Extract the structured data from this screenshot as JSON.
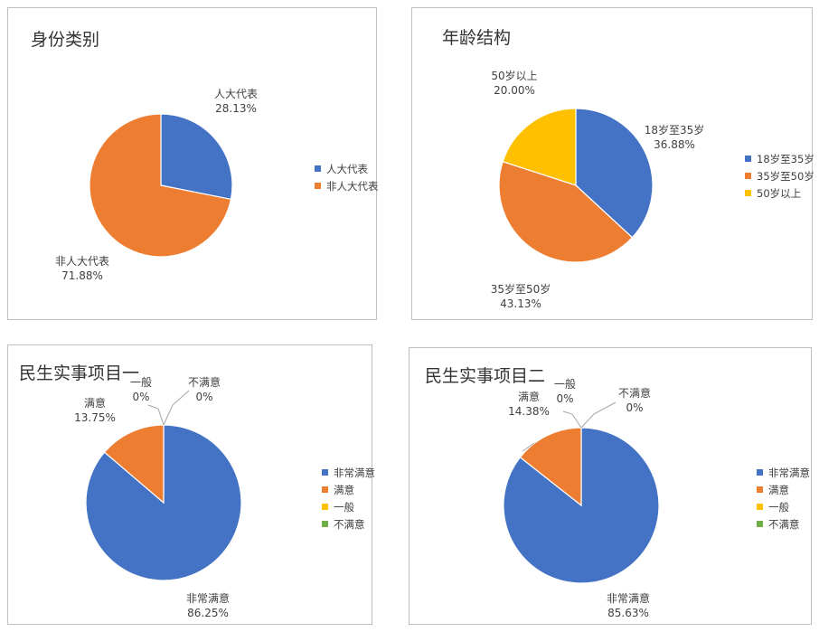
{
  "chart_data": [
    {
      "type": "pie",
      "title": "身份类别",
      "categories": [
        "人大代表",
        "非人大代表"
      ],
      "values": [
        28.13,
        71.88
      ],
      "value_labels": [
        "28.13%",
        "71.88%"
      ],
      "colors": [
        "#4472C4",
        "#ED7D31"
      ],
      "legend": "right"
    },
    {
      "type": "pie",
      "title": "年龄结构",
      "categories": [
        "18岁至35岁",
        "35岁至50岁",
        "50岁以上"
      ],
      "values": [
        36.88,
        43.13,
        20.0
      ],
      "value_labels": [
        "36.88%",
        "43.13%",
        "20.00%"
      ],
      "colors": [
        "#4472C4",
        "#ED7D31",
        "#FFC000"
      ],
      "legend": "right"
    },
    {
      "type": "pie",
      "title": "民生实事项目一",
      "categories": [
        "非常满意",
        "满意",
        "一般",
        "不满意"
      ],
      "values": [
        86.25,
        13.75,
        0,
        0
      ],
      "value_labels": [
        "86.25%",
        "13.75%",
        "0%",
        "0%"
      ],
      "colors": [
        "#4472C4",
        "#ED7D31",
        "#FFC000",
        "#70AD47"
      ],
      "legend": "right"
    },
    {
      "type": "pie",
      "title": "民生实事项目二",
      "categories": [
        "非常满意",
        "满意",
        "一般",
        "不满意"
      ],
      "values": [
        85.63,
        14.38,
        0,
        0
      ],
      "value_labels": [
        "85.63%",
        "14.38%",
        "0%",
        "0%"
      ],
      "colors": [
        "#4472C4",
        "#ED7D31",
        "#FFC000",
        "#70AD47"
      ],
      "legend": "right"
    }
  ]
}
